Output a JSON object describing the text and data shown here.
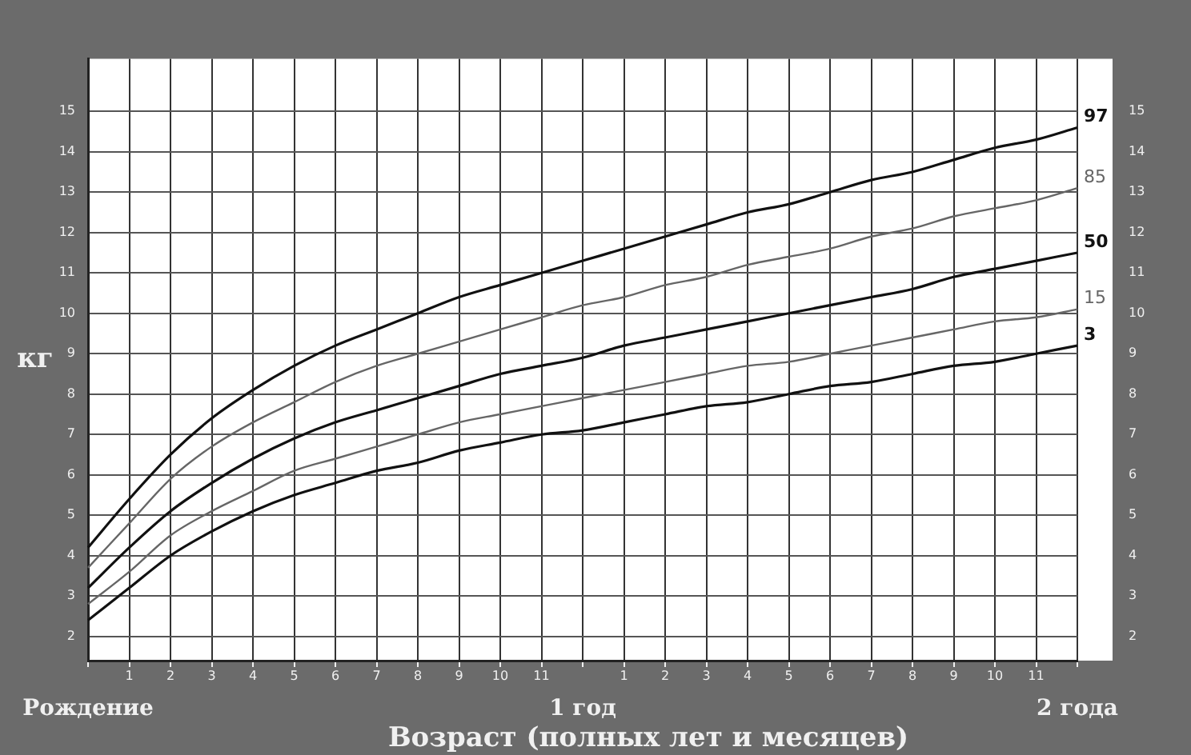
{
  "chart_data": {
    "type": "line",
    "xlabel": "Возраст (полных лет и месяцев)",
    "ylabel": "кг",
    "categories": [
      "Рождение",
      "1",
      "2",
      "3",
      "4",
      "5",
      "6",
      "7",
      "8",
      "9",
      "10",
      "11",
      "1 год",
      "1",
      "2",
      "3",
      "4",
      "5",
      "6",
      "7",
      "8",
      "9",
      "10",
      "11",
      "2 года"
    ],
    "series": [
      {
        "name": "97",
        "color": "#111111",
        "values": [
          4.2,
          5.4,
          6.5,
          7.4,
          8.1,
          8.7,
          9.2,
          9.6,
          10.0,
          10.4,
          10.7,
          11.0,
          11.3,
          11.6,
          11.9,
          12.2,
          12.5,
          12.7,
          13.0,
          13.3,
          13.5,
          13.8,
          14.1,
          14.3,
          14.6
        ]
      },
      {
        "name": "85",
        "color": "#666666",
        "values": [
          3.7,
          4.8,
          5.9,
          6.7,
          7.3,
          7.8,
          8.3,
          8.7,
          9.0,
          9.3,
          9.6,
          9.9,
          10.2,
          10.4,
          10.7,
          10.9,
          11.2,
          11.4,
          11.6,
          11.9,
          12.1,
          12.4,
          12.6,
          12.8,
          13.1
        ]
      },
      {
        "name": "50",
        "color": "#111111",
        "values": [
          3.2,
          4.2,
          5.1,
          5.8,
          6.4,
          6.9,
          7.3,
          7.6,
          7.9,
          8.2,
          8.5,
          8.7,
          8.9,
          9.2,
          9.4,
          9.6,
          9.8,
          10.0,
          10.2,
          10.4,
          10.6,
          10.9,
          11.1,
          11.3,
          11.5
        ]
      },
      {
        "name": "15",
        "color": "#666666",
        "values": [
          2.8,
          3.6,
          4.5,
          5.1,
          5.6,
          6.1,
          6.4,
          6.7,
          7.0,
          7.3,
          7.5,
          7.7,
          7.9,
          8.1,
          8.3,
          8.5,
          8.7,
          8.8,
          9.0,
          9.2,
          9.4,
          9.6,
          9.8,
          9.9,
          10.1
        ]
      },
      {
        "name": "3",
        "color": "#111111",
        "values": [
          2.4,
          3.2,
          4.0,
          4.6,
          5.1,
          5.5,
          5.8,
          6.1,
          6.3,
          6.6,
          6.8,
          7.0,
          7.1,
          7.3,
          7.5,
          7.7,
          7.8,
          8.0,
          8.2,
          8.3,
          8.5,
          8.7,
          8.8,
          9.0,
          9.2
        ]
      }
    ],
    "ylim": [
      1.4,
      16.3
    ],
    "yticks": [
      2,
      3,
      4,
      5,
      6,
      7,
      8,
      9,
      10,
      11,
      12,
      13,
      14,
      15
    ],
    "y2lim": [
      1.4,
      16.3
    ],
    "y2ticks": [
      2,
      3,
      4,
      5,
      6,
      7,
      8,
      9,
      10,
      11,
      12,
      13,
      14,
      15
    ],
    "grid": true,
    "legend": false,
    "marker": "none",
    "line_style": "solid"
  }
}
